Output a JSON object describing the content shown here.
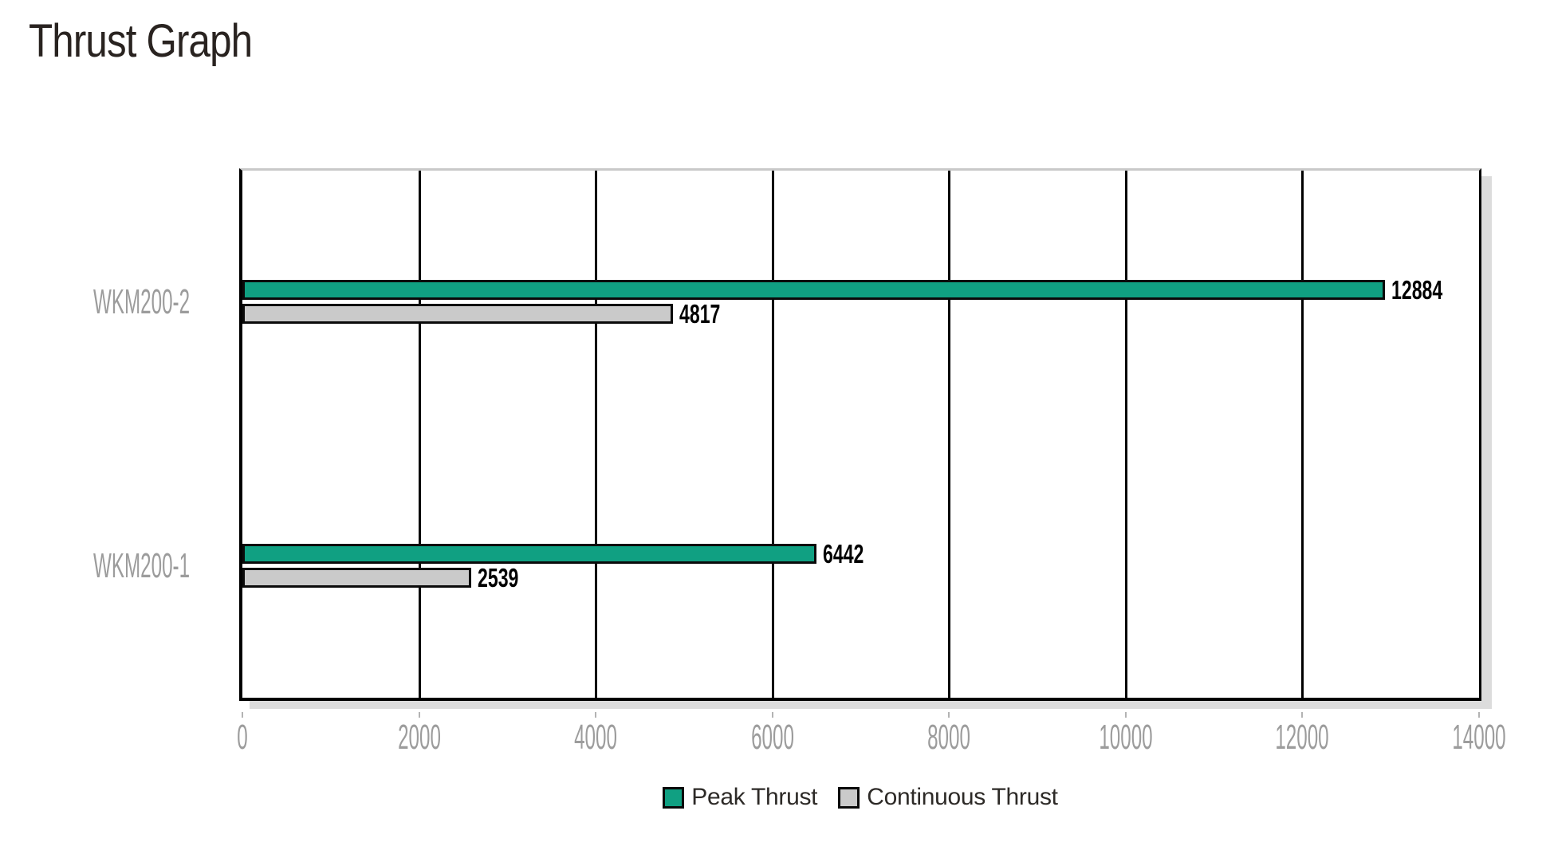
{
  "header": {
    "title": "Thrust Graph"
  },
  "chart_data": {
    "type": "bar",
    "orientation": "horizontal",
    "title": "Thrust Graph",
    "categories": [
      "WKM200-2",
      "WKM200-1"
    ],
    "series": [
      {
        "name": "Peak Thrust",
        "color": "#10a082",
        "values": [
          12884,
          6442
        ]
      },
      {
        "name": "Continuous Thrust",
        "color": "#cacaca",
        "values": [
          4817,
          2539
        ]
      }
    ],
    "xlim": [
      0,
      14000
    ],
    "x_ticks": [
      0,
      2000,
      4000,
      6000,
      8000,
      10000,
      12000,
      14000
    ],
    "grid": "vertical",
    "legend_position": "bottom",
    "value_labels": "end-of-bar"
  },
  "colors": {
    "peak_bar": "#10a082",
    "continuous_bar": "#cacaca",
    "bar_border": "#0a0a0a",
    "gridline": "#000000",
    "plot_top_border": "#c9c9c9",
    "shadow": "#dcdcdc",
    "axis_text": "#9c9c9c",
    "title_text": "#292320",
    "value_text": "#000000",
    "legend_text": "#2d2a27",
    "background": "#ffffff"
  }
}
